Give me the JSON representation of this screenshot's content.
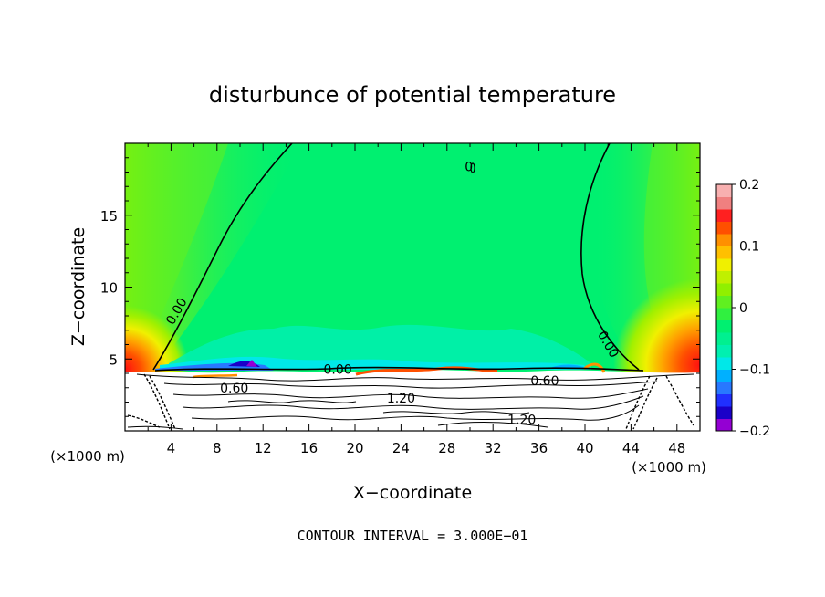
{
  "chart_data": {
    "type": "heatmap",
    "title": "disturbunce of potential temperature",
    "xlabel": "X−coordinate",
    "ylabel": "Z−coordinate",
    "x_unit": "(×1000 m)",
    "x_unit_right": "(×1000 m)",
    "xlim": [
      0,
      50
    ],
    "ylim": [
      0,
      20
    ],
    "x_ticks": [
      4,
      8,
      12,
      16,
      20,
      24,
      28,
      32,
      36,
      40,
      44,
      48
    ],
    "x_tick_labels": [
      "4",
      "8",
      "12",
      "16",
      "20",
      "24",
      "28",
      "32",
      "36",
      "40",
      "44",
      "48"
    ],
    "y_ticks": [
      5,
      10,
      15
    ],
    "y_tick_labels": [
      "5",
      "10",
      "15"
    ],
    "colorbar": {
      "range": [
        -0.2,
        0.2
      ],
      "ticks": [
        0.2,
        0.1,
        0,
        -0.1,
        -0.2
      ],
      "tick_labels": [
        "0.2",
        "0.1",
        "0",
        "−0.1",
        "−0.2"
      ],
      "levels": [
        -0.2,
        -0.18,
        -0.16,
        -0.14,
        -0.12,
        -0.1,
        -0.08,
        -0.06,
        -0.04,
        -0.02,
        0,
        0.02,
        0.04,
        0.06,
        0.08,
        0.1,
        0.12,
        0.14,
        0.16,
        0.18,
        0.2
      ]
    },
    "contour_labels": [
      {
        "text": "0.00",
        "x": 4.8,
        "z": 8.3
      },
      {
        "text": "0.00",
        "x": 41.7,
        "z": 6.0
      },
      {
        "text": "0.00",
        "x": 18.5,
        "z": 4.1
      },
      {
        "text": "0.60",
        "x": 9.5,
        "z": 2.8
      },
      {
        "text": "1.20",
        "x": 24.0,
        "z": 2.1
      },
      {
        "text": "0.60",
        "x": 36.5,
        "z": 3.3
      },
      {
        "text": "1.20",
        "x": 34.5,
        "z": 0.6
      },
      {
        "text": "0",
        "x": 29.9,
        "z": 18.2
      }
    ],
    "contour_interval_text": "CONTOUR INTERVAL = 3.000E−01"
  },
  "colors": {
    "background": "#ffffff",
    "neutral_field": "#00f070",
    "palette": [
      "#9400d3",
      "#1a00c8",
      "#2030ff",
      "#2878ff",
      "#00b0ff",
      "#00e8e8",
      "#00f0b0",
      "#00f090",
      "#00f070",
      "#30f040",
      "#60f020",
      "#90f000",
      "#c0f000",
      "#f0f000",
      "#ffc000",
      "#ff9000",
      "#ff5000",
      "#ff2020",
      "#f08080",
      "#f8b0b0"
    ]
  }
}
